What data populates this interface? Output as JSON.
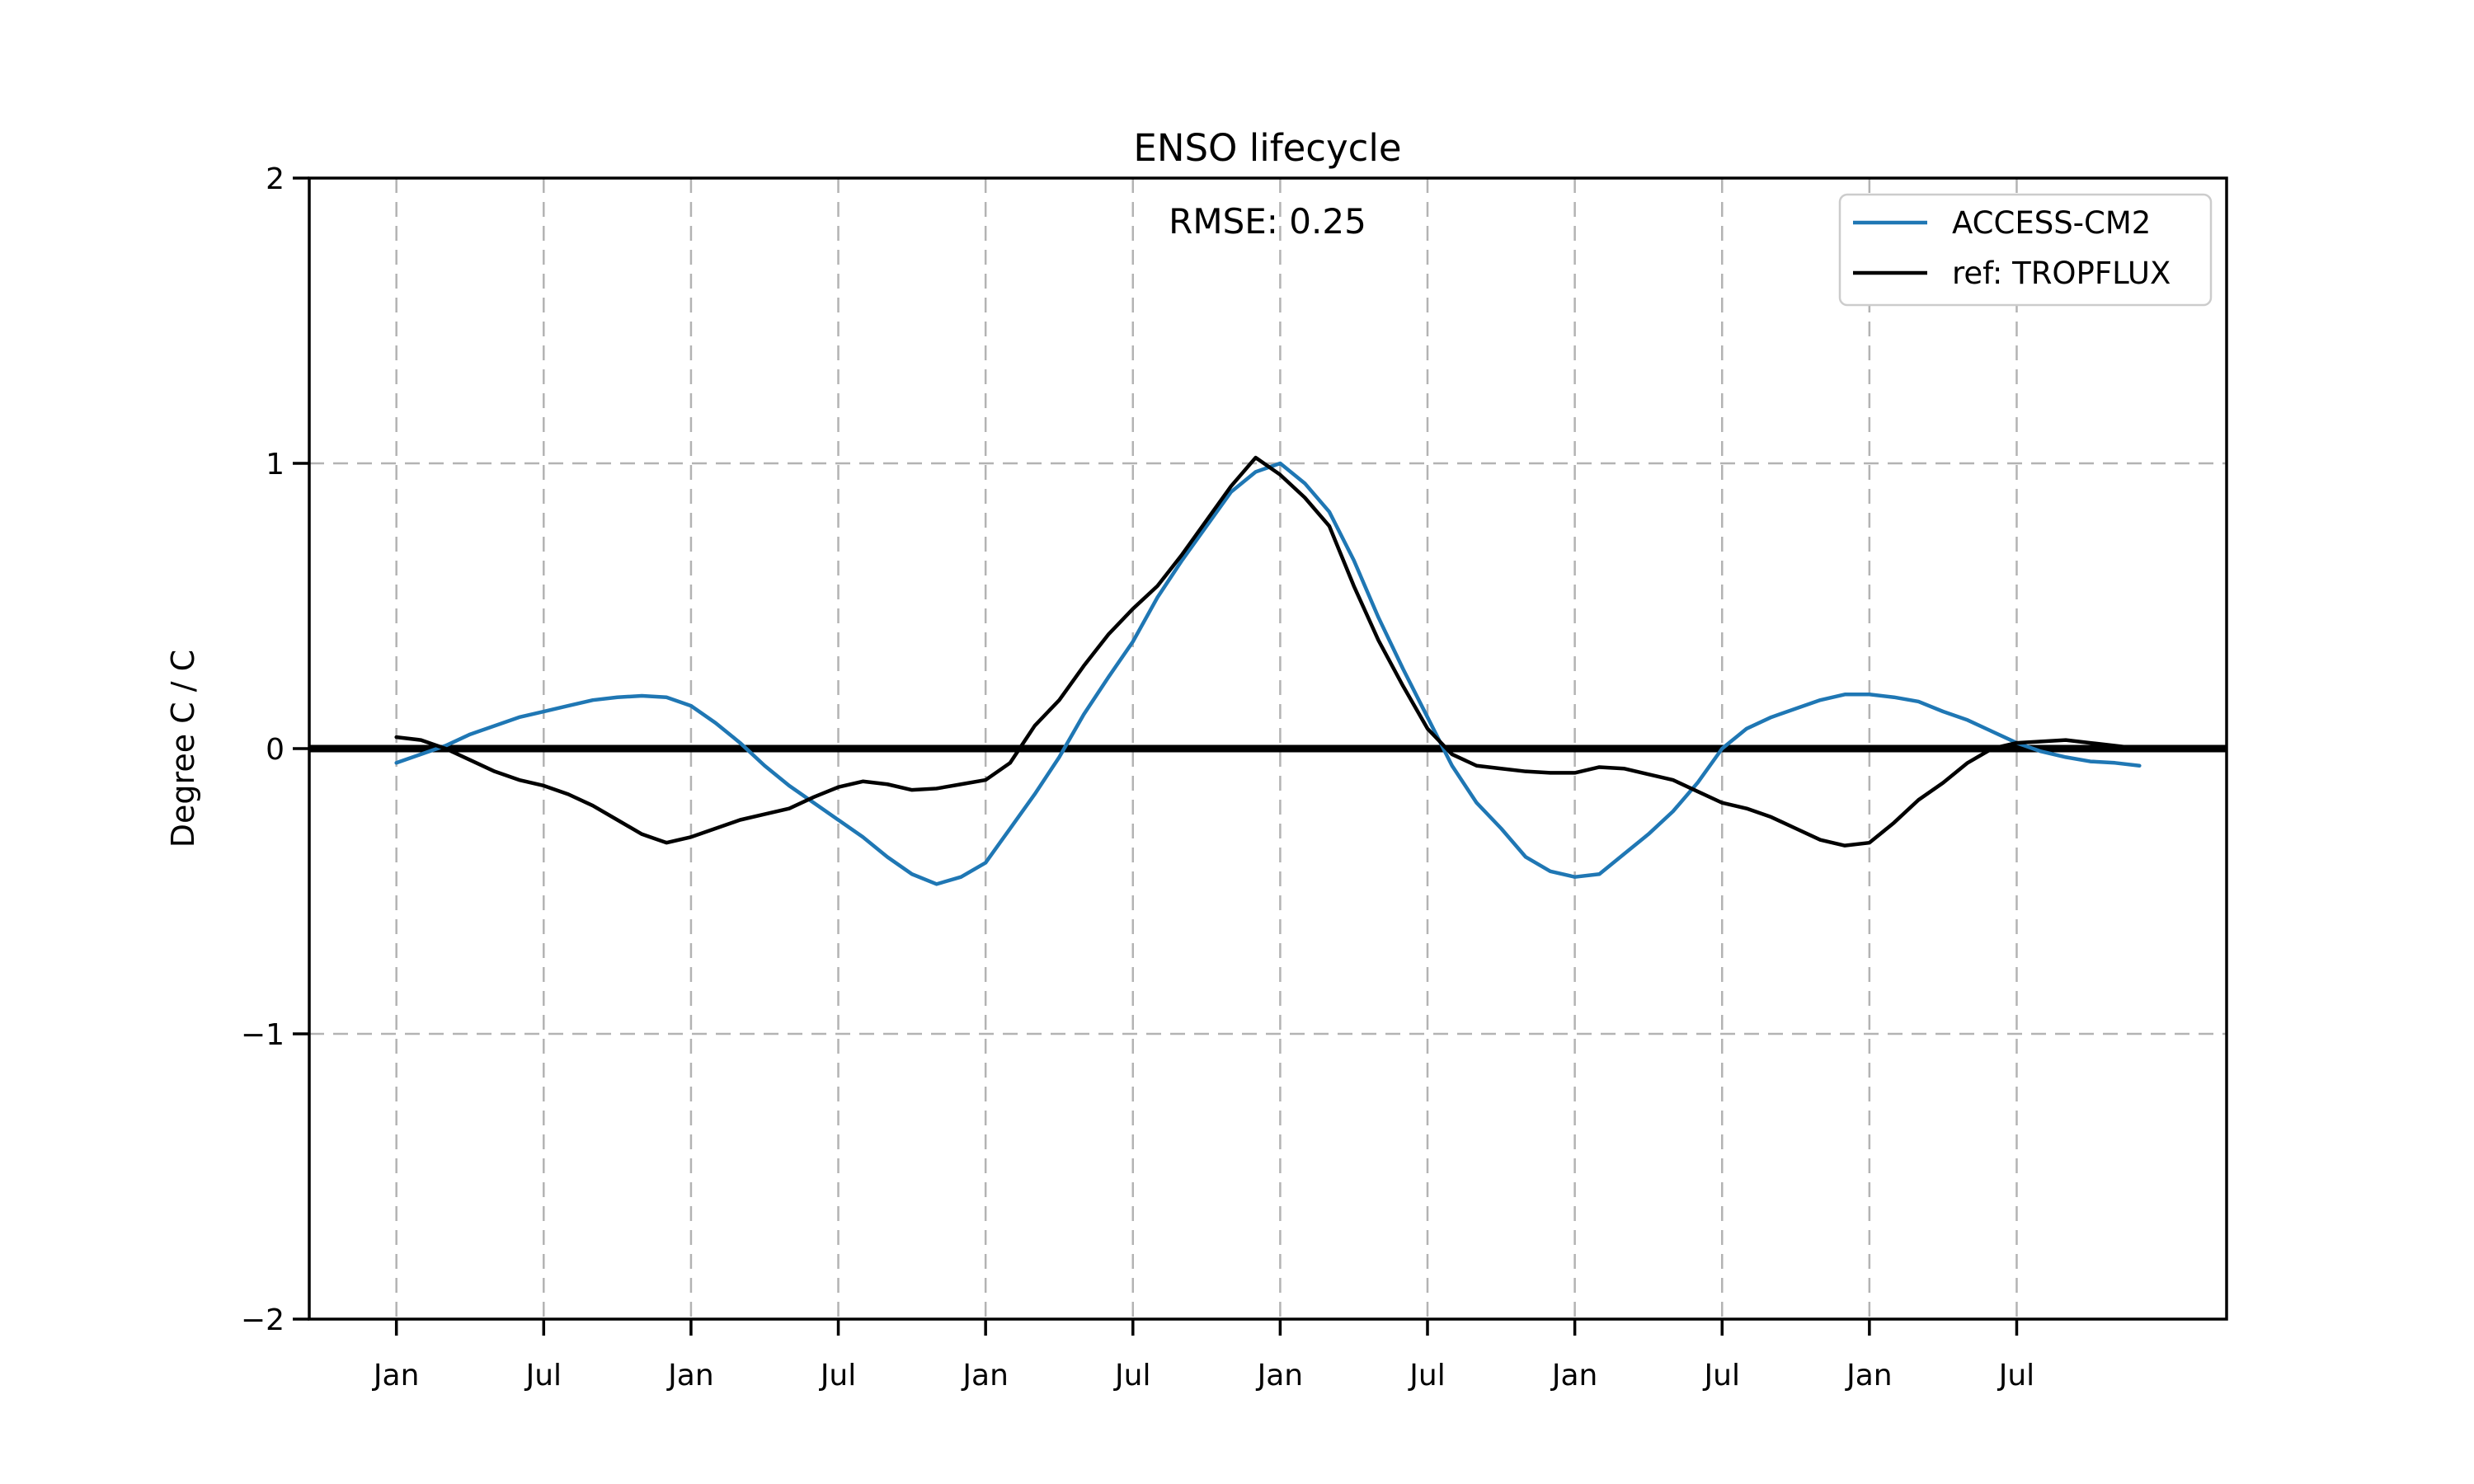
{
  "chart_data": {
    "type": "line",
    "title": "ENSO lifecycle",
    "annotation": "RMSE: 0.25",
    "xlabel": "",
    "ylabel": "Degree C / C",
    "xlim": [
      -3.55,
      74.55
    ],
    "ylim": [
      -2,
      2
    ],
    "x_unit": "month index of 6-year composite (0 = first January shown)",
    "grid": "dashed",
    "zero_line": true,
    "legend_position": "upper right",
    "x_ticks": [
      {
        "pos": 0,
        "label": "Jan"
      },
      {
        "pos": 6,
        "label": "Jul"
      },
      {
        "pos": 12,
        "label": "Jan"
      },
      {
        "pos": 18,
        "label": "Jul"
      },
      {
        "pos": 24,
        "label": "Jan"
      },
      {
        "pos": 30,
        "label": "Jul"
      },
      {
        "pos": 36,
        "label": "Jan"
      },
      {
        "pos": 42,
        "label": "Jul"
      },
      {
        "pos": 48,
        "label": "Jan"
      },
      {
        "pos": 54,
        "label": "Jul"
      },
      {
        "pos": 60,
        "label": "Jan"
      },
      {
        "pos": 66,
        "label": "Jul"
      }
    ],
    "y_ticks": [
      {
        "pos": 2,
        "label": "2"
      },
      {
        "pos": 1,
        "label": "1"
      },
      {
        "pos": 0,
        "label": "0"
      },
      {
        "pos": -1,
        "label": "−1"
      },
      {
        "pos": -2,
        "label": "−2"
      }
    ],
    "series": [
      {
        "name": "ACCESS-CM2",
        "color": "#1f77b4",
        "x_start": 0,
        "x_step": 1,
        "values": [
          -0.05,
          -0.02,
          0.01,
          0.05,
          0.08,
          0.11,
          0.13,
          0.15,
          0.17,
          0.18,
          0.185,
          0.18,
          0.15,
          0.09,
          0.02,
          -0.06,
          -0.13,
          -0.19,
          -0.25,
          -0.31,
          -0.38,
          -0.44,
          -0.475,
          -0.45,
          -0.4,
          -0.28,
          -0.16,
          -0.03,
          0.12,
          0.25,
          0.375,
          0.53,
          0.66,
          0.78,
          0.9,
          0.97,
          1.0,
          0.93,
          0.83,
          0.66,
          0.46,
          0.28,
          0.11,
          -0.06,
          -0.19,
          -0.28,
          -0.38,
          -0.43,
          -0.45,
          -0.44,
          -0.37,
          -0.3,
          -0.22,
          -0.12,
          0.0,
          0.07,
          0.11,
          0.14,
          0.17,
          0.19,
          0.19,
          0.18,
          0.165,
          0.13,
          0.1,
          0.06,
          0.02,
          -0.01,
          -0.03,
          -0.045,
          -0.05,
          -0.06
        ]
      },
      {
        "name": "ref: TROPFLUX",
        "color": "#000000",
        "x_start": 0,
        "x_step": 1,
        "values": [
          0.04,
          0.03,
          0.0,
          -0.04,
          -0.08,
          -0.11,
          -0.13,
          -0.16,
          -0.2,
          -0.25,
          -0.3,
          -0.33,
          -0.31,
          -0.28,
          -0.25,
          -0.23,
          -0.21,
          -0.17,
          -0.135,
          -0.115,
          -0.125,
          -0.145,
          -0.14,
          -0.125,
          -0.11,
          -0.05,
          0.08,
          0.17,
          0.29,
          0.4,
          0.49,
          0.57,
          0.68,
          0.8,
          0.92,
          1.02,
          0.96,
          0.88,
          0.78,
          0.57,
          0.38,
          0.22,
          0.07,
          -0.02,
          -0.06,
          -0.07,
          -0.08,
          -0.085,
          -0.085,
          -0.065,
          -0.07,
          -0.09,
          -0.11,
          -0.15,
          -0.19,
          -0.21,
          -0.24,
          -0.28,
          -0.32,
          -0.34,
          -0.33,
          -0.26,
          -0.18,
          -0.12,
          -0.05,
          0.0,
          0.02,
          0.025,
          0.03,
          0.02,
          0.01,
          0.0
        ]
      }
    ],
    "colors": {
      "model_line": "#1f77b4",
      "ref_line": "#000000",
      "grid": "#b3b3b3",
      "legend_border": "#cccccc",
      "background": "#ffffff"
    }
  }
}
